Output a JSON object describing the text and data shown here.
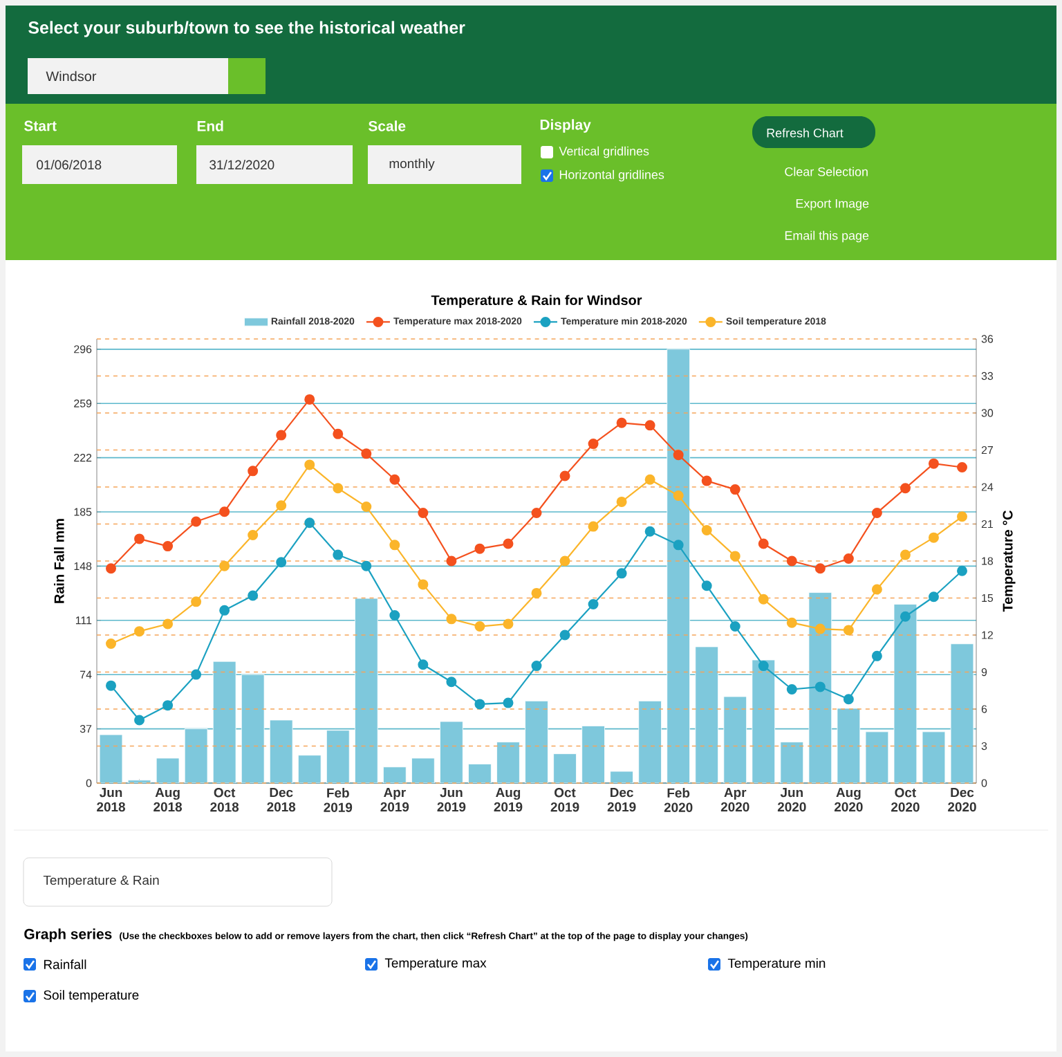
{
  "chart_data": {
    "type": "bar",
    "title": "Temperature & Rain for Windsor",
    "categories": [
      "Jun 2018",
      null,
      "Aug 2018",
      null,
      "Oct 2018",
      null,
      "Dec 2018",
      null,
      "Feb 2019",
      null,
      "Apr 2019",
      null,
      "Jun 2019",
      null,
      "Aug 2019",
      null,
      "Oct 2019",
      null,
      "Dec 2019",
      null,
      "Feb 2020",
      null,
      "Apr 2020",
      null,
      "Jun 2020",
      null,
      "Aug 2020",
      null,
      "Oct 2020",
      null,
      "Dec 2020"
    ],
    "series": [
      {
        "name": "Rainfall 2018-2020",
        "color": "#7ec8dc",
        "values": [
          33,
          2,
          17,
          37,
          83,
          74,
          43,
          19,
          36,
          126,
          11,
          17,
          42,
          13,
          28,
          56,
          20,
          39,
          8,
          56,
          296,
          93,
          59,
          84,
          28,
          130,
          51,
          35,
          122,
          35,
          95
        ]
      },
      {
        "name": "Temperature max 2018-2020",
        "type": "line",
        "axis": "y2",
        "color": "#f4511e",
        "values": [
          17.4,
          19.8,
          19.2,
          21.2,
          22.0,
          25.3,
          28.2,
          31.1,
          28.3,
          26.7,
          24.6,
          21.9,
          18.0,
          19.0,
          19.4,
          21.9,
          24.9,
          27.5,
          29.2,
          29.0,
          26.6,
          24.5,
          23.8,
          19.4,
          18.0,
          17.4,
          18.2,
          21.9,
          23.9,
          25.9,
          25.6
        ]
      },
      {
        "name": "Temperature min 2018-2020",
        "type": "line",
        "axis": "y2",
        "color": "#1ba1c1",
        "values": [
          7.9,
          5.1,
          6.3,
          8.8,
          14.0,
          15.2,
          17.9,
          21.1,
          18.5,
          17.6,
          13.6,
          9.6,
          8.2,
          6.4,
          6.5,
          9.5,
          12.0,
          14.5,
          17.0,
          20.4,
          19.3,
          16.0,
          12.7,
          9.5,
          7.6,
          7.8,
          6.8,
          10.3,
          13.5,
          15.1,
          17.2
        ]
      },
      {
        "name": "Soil temperature 2018",
        "type": "line",
        "axis": "y2",
        "color": "#fbb52a",
        "values": [
          11.3,
          12.3,
          12.9,
          14.7,
          17.6,
          20.1,
          22.5,
          25.8,
          23.9,
          22.4,
          19.3,
          16.1,
          13.3,
          12.7,
          12.9,
          15.4,
          18.0,
          20.8,
          22.8,
          24.6,
          23.3,
          20.5,
          18.4,
          14.9,
          13.0,
          12.5,
          12.4,
          15.7,
          18.5,
          19.9,
          21.6
        ]
      }
    ],
    "ylabel": "Rain Fall mm",
    "y2label": "Temperature °C",
    "ylim": [
      0,
      303
    ],
    "yticks": [
      0,
      37,
      74,
      111,
      148,
      185,
      222,
      259,
      296
    ],
    "y2lim": [
      0,
      36
    ],
    "y2ticks": [
      0,
      3,
      6,
      9,
      12,
      15,
      18,
      21,
      24,
      27,
      30,
      33,
      36
    ],
    "grid": "y",
    "legend": "top",
    "marker": "circle",
    "annotations": [
      "Select your suburb/town to see the historical weather",
      "Windsor",
      "Start",
      "01/06/2018",
      "End",
      "31/12/2020",
      "Scale",
      "monthly",
      "Display",
      "Vertical gridlines",
      "Horizontal gridlines",
      "Refresh Chart",
      "Clear Selection",
      "Export Image",
      "Email this page",
      "Temperature & Rain",
      "Graph series",
      "(Use the checkboxes below to add or remove layers from the chart, then click “Refresh Chart” at the top of the page to display your changes)",
      "Rainfall",
      "Temperature max",
      "Temperature min",
      "Soil temperature"
    ]
  }
}
